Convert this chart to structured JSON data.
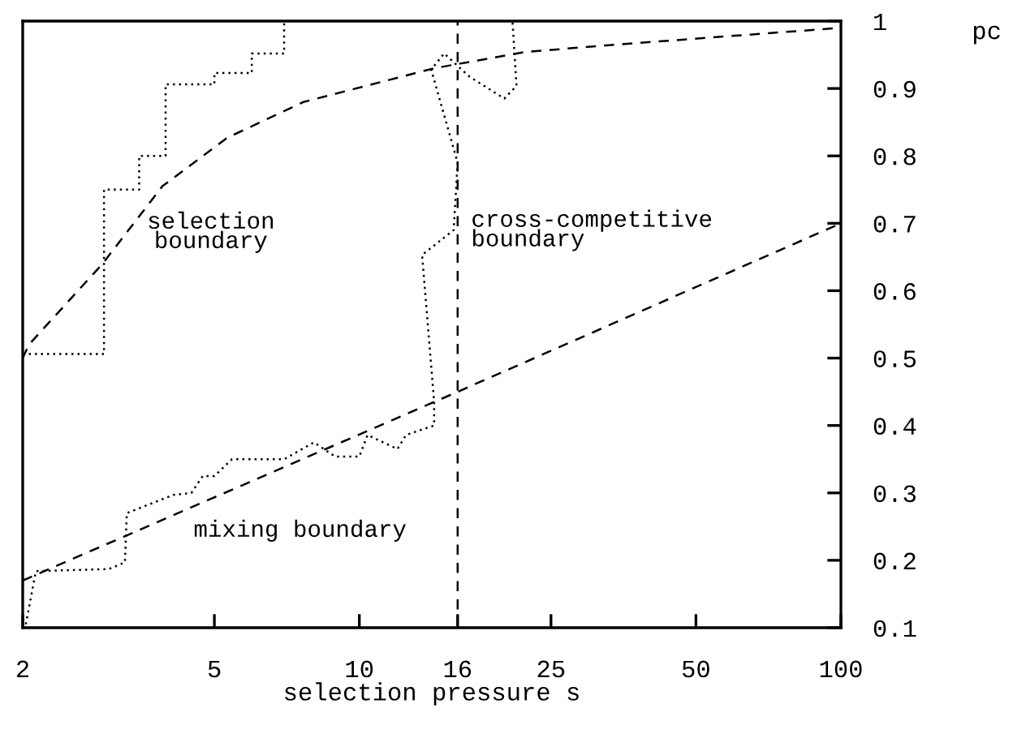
{
  "chart_data": {
    "type": "line",
    "xlabel": "selection pressure s",
    "ylabel": "pc",
    "log": "x",
    "xlim": [
      2,
      100
    ],
    "xticks": [
      2,
      5,
      10,
      16,
      25,
      50,
      100
    ],
    "ylim": [
      0.1,
      1
    ],
    "yticks": [
      0.1,
      0.2,
      0.3,
      0.4,
      0.5,
      0.6,
      0.7,
      0.8,
      0.9,
      1
    ],
    "grid": false,
    "legend": false,
    "marker": "none",
    "series": [
      {
        "color": "#000000",
        "line_style": "dashed",
        "x": [
          2,
          2.06,
          2.93,
          3.9,
          5.32,
          7.66,
          14.3,
          22,
          32.5,
          100
        ],
        "values": [
          0.5,
          0.52,
          0.64,
          0.755,
          0.827,
          0.88,
          0.93,
          0.954,
          0.964,
          0.99
        ]
      },
      {
        "color": "#000000",
        "line_style": "dashed",
        "x": [
          2,
          16,
          100
        ],
        "values": [
          0.17,
          0.45,
          0.7
        ]
      },
      {
        "color": "#000000",
        "line_style": "dotted",
        "x": [
          2,
          2.95,
          2.95,
          3.49,
          3.49,
          3.96,
          3.96,
          5.0,
          5.0,
          5.98,
          5.98,
          6.98,
          6.98
        ],
        "values": [
          0.506,
          0.506,
          0.75,
          0.75,
          0.8,
          0.8,
          0.906,
          0.906,
          0.923,
          0.923,
          0.952,
          0.952,
          1.0
        ]
      },
      {
        "color": "#000000",
        "line_style": "dotted",
        "x": [
          2.03,
          2.13,
          3.02,
          3.26,
          3.29,
          4.11,
          4.48,
          4.73,
          5.0,
          5.44,
          6.98,
          8.05,
          8.9,
          10,
          10.4,
          12,
          12.5,
          14.3,
          14.3,
          13.5,
          15.7,
          16,
          14.1,
          15.0,
          16.9,
          20,
          21.2,
          20.8
        ],
        "values": [
          0.105,
          0.184,
          0.187,
          0.197,
          0.27,
          0.297,
          0.3,
          0.325,
          0.325,
          0.35,
          0.35,
          0.375,
          0.354,
          0.354,
          0.386,
          0.365,
          0.386,
          0.4,
          0.435,
          0.653,
          0.69,
          0.79,
          0.928,
          0.952,
          0.918,
          0.885,
          0.904,
          1.0
        ]
      }
    ],
    "ref_lines": [
      {
        "axis": "x",
        "value": 16,
        "color": "#000000",
        "line_style": "dashed"
      }
    ],
    "annotations": [
      "selection\nboundary",
      "cross-competitive\nboundary",
      "mixing boundary"
    ]
  }
}
